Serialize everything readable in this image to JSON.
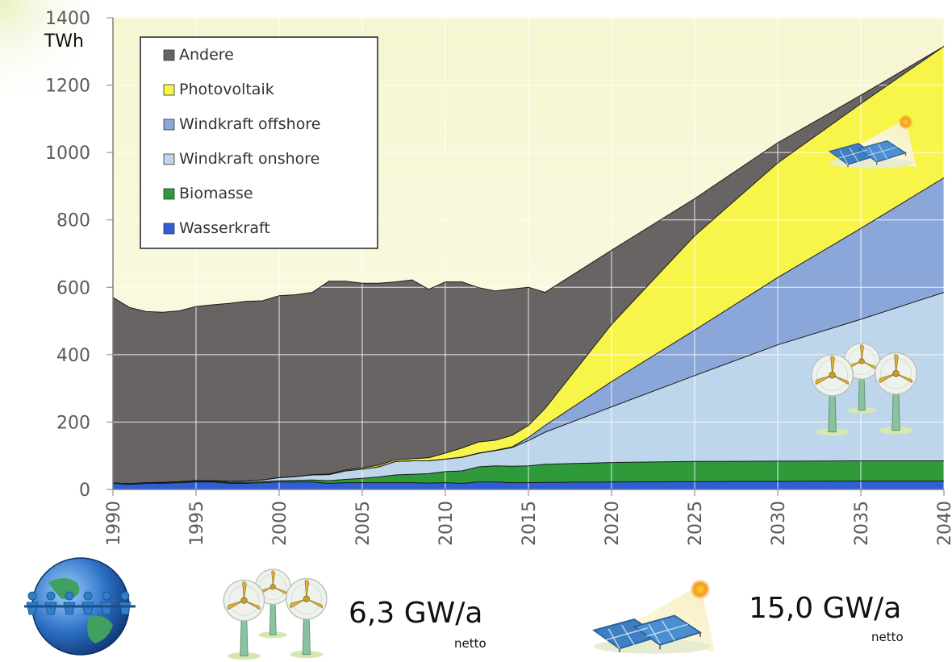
{
  "chart_data": {
    "type": "area",
    "stacked": true,
    "ylabel": "TWh",
    "ylim": [
      0,
      1400
    ],
    "xlim": [
      1990,
      2040
    ],
    "yticks": [
      0,
      200,
      400,
      600,
      800,
      1000,
      1200,
      1400
    ],
    "xticks": [
      1990,
      1995,
      2000,
      2005,
      2010,
      2015,
      2020,
      2025,
      2030,
      2035,
      2040
    ],
    "grid": true,
    "legend_position": "top-left",
    "x": [
      1990,
      1991,
      1992,
      1993,
      1994,
      1995,
      1996,
      1997,
      1998,
      1999,
      2000,
      2001,
      2002,
      2003,
      2004,
      2005,
      2006,
      2007,
      2008,
      2009,
      2010,
      2011,
      2012,
      2013,
      2014,
      2015,
      2016,
      2020,
      2025,
      2030,
      2035,
      2040
    ],
    "series": [
      {
        "name": "Wasserkraft",
        "color": "#2f5fd6",
        "values": [
          18,
          15,
          18,
          18,
          20,
          22,
          22,
          18,
          18,
          20,
          22,
          22,
          22,
          18,
          20,
          20,
          20,
          20,
          20,
          19,
          20,
          18,
          22,
          22,
          20,
          20,
          21,
          22,
          23,
          24,
          25,
          25
        ]
      },
      {
        "name": "Biomasse",
        "color": "#2e9a3a",
        "values": [
          1,
          2,
          2,
          2,
          2,
          2,
          2,
          3,
          3,
          3,
          4,
          5,
          6,
          8,
          10,
          13,
          17,
          23,
          25,
          28,
          33,
          37,
          45,
          48,
          49,
          50,
          54,
          58,
          60,
          60,
          60,
          60
        ]
      },
      {
        "name": "Windkraft onshore",
        "color": "#bed6ec",
        "values": [
          0,
          0,
          0,
          1,
          1,
          2,
          2,
          3,
          4,
          5,
          9,
          11,
          15,
          18,
          25,
          27,
          30,
          40,
          40,
          38,
          37,
          40,
          40,
          45,
          55,
          75,
          95,
          165,
          255,
          345,
          420,
          500
        ]
      },
      {
        "name": "Windkraft offshore",
        "color": "#8ba7d9",
        "values": [
          0,
          0,
          0,
          0,
          0,
          0,
          0,
          0,
          0,
          0,
          0,
          0,
          0,
          0,
          0,
          0,
          0,
          0,
          0,
          0,
          0,
          1,
          1,
          1,
          2,
          9,
          20,
          75,
          135,
          200,
          270,
          340
        ]
      },
      {
        "name": "Photovoltaik",
        "color": "#f8f54a",
        "values": [
          0,
          0,
          0,
          0,
          0,
          0,
          0,
          0,
          0,
          0,
          0,
          0,
          1,
          2,
          3,
          4,
          5,
          5,
          6,
          9,
          18,
          27,
          33,
          30,
          34,
          36,
          50,
          170,
          280,
          340,
          370,
          390
        ]
      },
      {
        "name": "Andere",
        "color": "#686464",
        "values": [
          551,
          523,
          508,
          505,
          507,
          517,
          522,
          528,
          533,
          532,
          540,
          540,
          541,
          572,
          560,
          548,
          540,
          528,
          531,
          500,
          508,
          493,
          458,
          443,
          435,
          410,
          345,
          220,
          110,
          60,
          25,
          0
        ]
      }
    ]
  },
  "annotations": {
    "wind_rate": "6,3 GW/a",
    "wind_netto": "netto",
    "pv_rate": "15,0 GW/a",
    "pv_netto": "netto"
  },
  "icons": [
    "solar-panel-icon",
    "wind-turbine-icon",
    "globe-people-icon"
  ]
}
